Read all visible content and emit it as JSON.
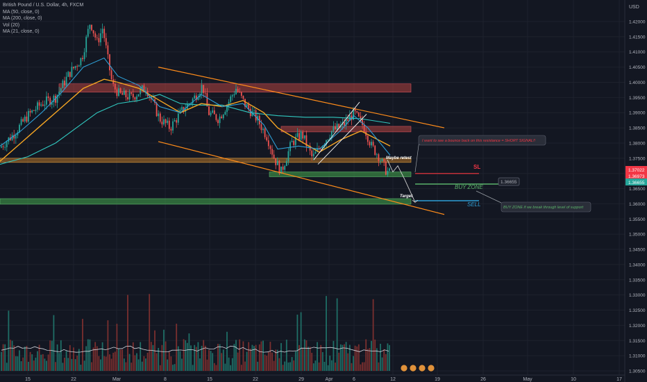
{
  "chart_data": {
    "type": "candlestick",
    "symbol_title": "British Pound / U.S. Dollar, 4h, FXCM",
    "indicators": [
      "MA (50, close, 0)",
      "MA (200, close, 0)",
      "Vol (20)",
      "MA (21, close, 0)"
    ],
    "currency_label": "USD",
    "y_ticks": [
      "1.42000",
      "1.41500",
      "1.41000",
      "1.40500",
      "1.40000",
      "1.39500",
      "1.39000",
      "1.38500",
      "1.38000",
      "1.37500",
      "1.37000",
      "1.36500",
      "1.36000",
      "1.35500",
      "1.35000",
      "1.34500",
      "1.34000",
      "1.33500",
      "1.33000",
      "1.32500",
      "1.32000",
      "1.31500",
      "1.31000",
      "1.30500"
    ],
    "x_ticks": [
      "15",
      "22",
      "Mar",
      "8",
      "15",
      "22",
      "29",
      "Apr",
      "6",
      "12",
      "19",
      "26",
      "May",
      "10",
      "17"
    ],
    "price_tags": [
      {
        "value": "1.37022",
        "color": "#f23645"
      },
      {
        "value": "1.36973",
        "color": "#f23645"
      },
      {
        "value": "1.36655",
        "color": "#26a69a"
      }
    ],
    "annotations": {
      "sl": "SL",
      "buy_zone": "BUY ZONE",
      "sell": "SELL",
      "target": "Target",
      "maybe_retest": "Maybe retest",
      "price_label": "1.36655",
      "note_short": "I want to see a bounce back on this resistance = SHORT SIGNAL!!",
      "note_buy": "BUY ZONE if we break through level of support"
    }
  },
  "colors": {
    "bg": "#131722",
    "up": "#26a69a",
    "down": "#ef5350",
    "ma50": "#f6a623",
    "ma200": "#31c9c0",
    "ma21": "#2e9fd6",
    "channel": "#ff8c1a",
    "red_zone": "#b4433f",
    "green_zone": "#3a8a44",
    "orange_zone": "#d98a2a"
  }
}
